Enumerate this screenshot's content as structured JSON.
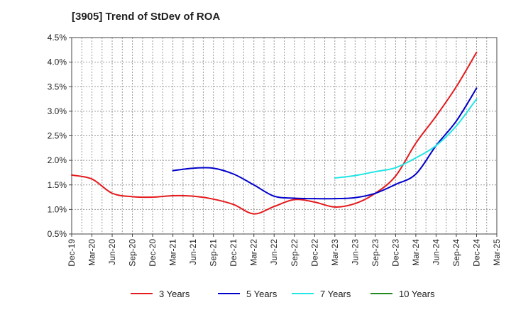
{
  "chart_data": {
    "type": "line",
    "title": "[3905]  Trend of StDev of ROA",
    "xlabel": "",
    "ylabel": "",
    "ylim": [
      0.5,
      4.5
    ],
    "y_ticks": [
      "0.5%",
      "1.0%",
      "1.5%",
      "2.0%",
      "2.5%",
      "3.0%",
      "3.5%",
      "4.0%",
      "4.5%"
    ],
    "categories": [
      "Dec-19",
      "Mar-20",
      "Jun-20",
      "Sep-20",
      "Dec-20",
      "Mar-21",
      "Jun-21",
      "Sep-21",
      "Dec-21",
      "Mar-22",
      "Jun-22",
      "Sep-22",
      "Dec-22",
      "Mar-23",
      "Jun-23",
      "Sep-23",
      "Dec-23",
      "Mar-24",
      "Jun-24",
      "Sep-24",
      "Dec-24",
      "Mar-25"
    ],
    "grid": true,
    "legend_position": "bottom",
    "series": [
      {
        "name": "3 Years",
        "color": "#e41a1c",
        "values": [
          1.7,
          1.62,
          1.33,
          1.26,
          1.25,
          1.28,
          1.27,
          1.21,
          1.1,
          0.91,
          1.06,
          1.2,
          1.15,
          1.05,
          1.12,
          1.33,
          1.68,
          2.35,
          2.9,
          3.5,
          4.2,
          null
        ]
      },
      {
        "name": "5 Years",
        "color": "#0000cc",
        "values": [
          null,
          null,
          null,
          null,
          null,
          1.79,
          1.84,
          1.84,
          1.72,
          1.5,
          1.27,
          1.23,
          1.22,
          1.22,
          1.24,
          1.33,
          1.51,
          1.72,
          2.3,
          2.8,
          3.47,
          null
        ]
      },
      {
        "name": "7 Years",
        "color": "#22e5e5",
        "values": [
          null,
          null,
          null,
          null,
          null,
          null,
          null,
          null,
          null,
          null,
          null,
          null,
          null,
          1.64,
          1.69,
          1.77,
          1.85,
          2.05,
          2.3,
          2.7,
          3.25,
          null
        ]
      },
      {
        "name": "10 Years",
        "color": "#228b22",
        "values": [
          null,
          null,
          null,
          null,
          null,
          null,
          null,
          null,
          null,
          null,
          null,
          null,
          null,
          null,
          null,
          null,
          null,
          null,
          null,
          null,
          null,
          null
        ]
      }
    ]
  }
}
